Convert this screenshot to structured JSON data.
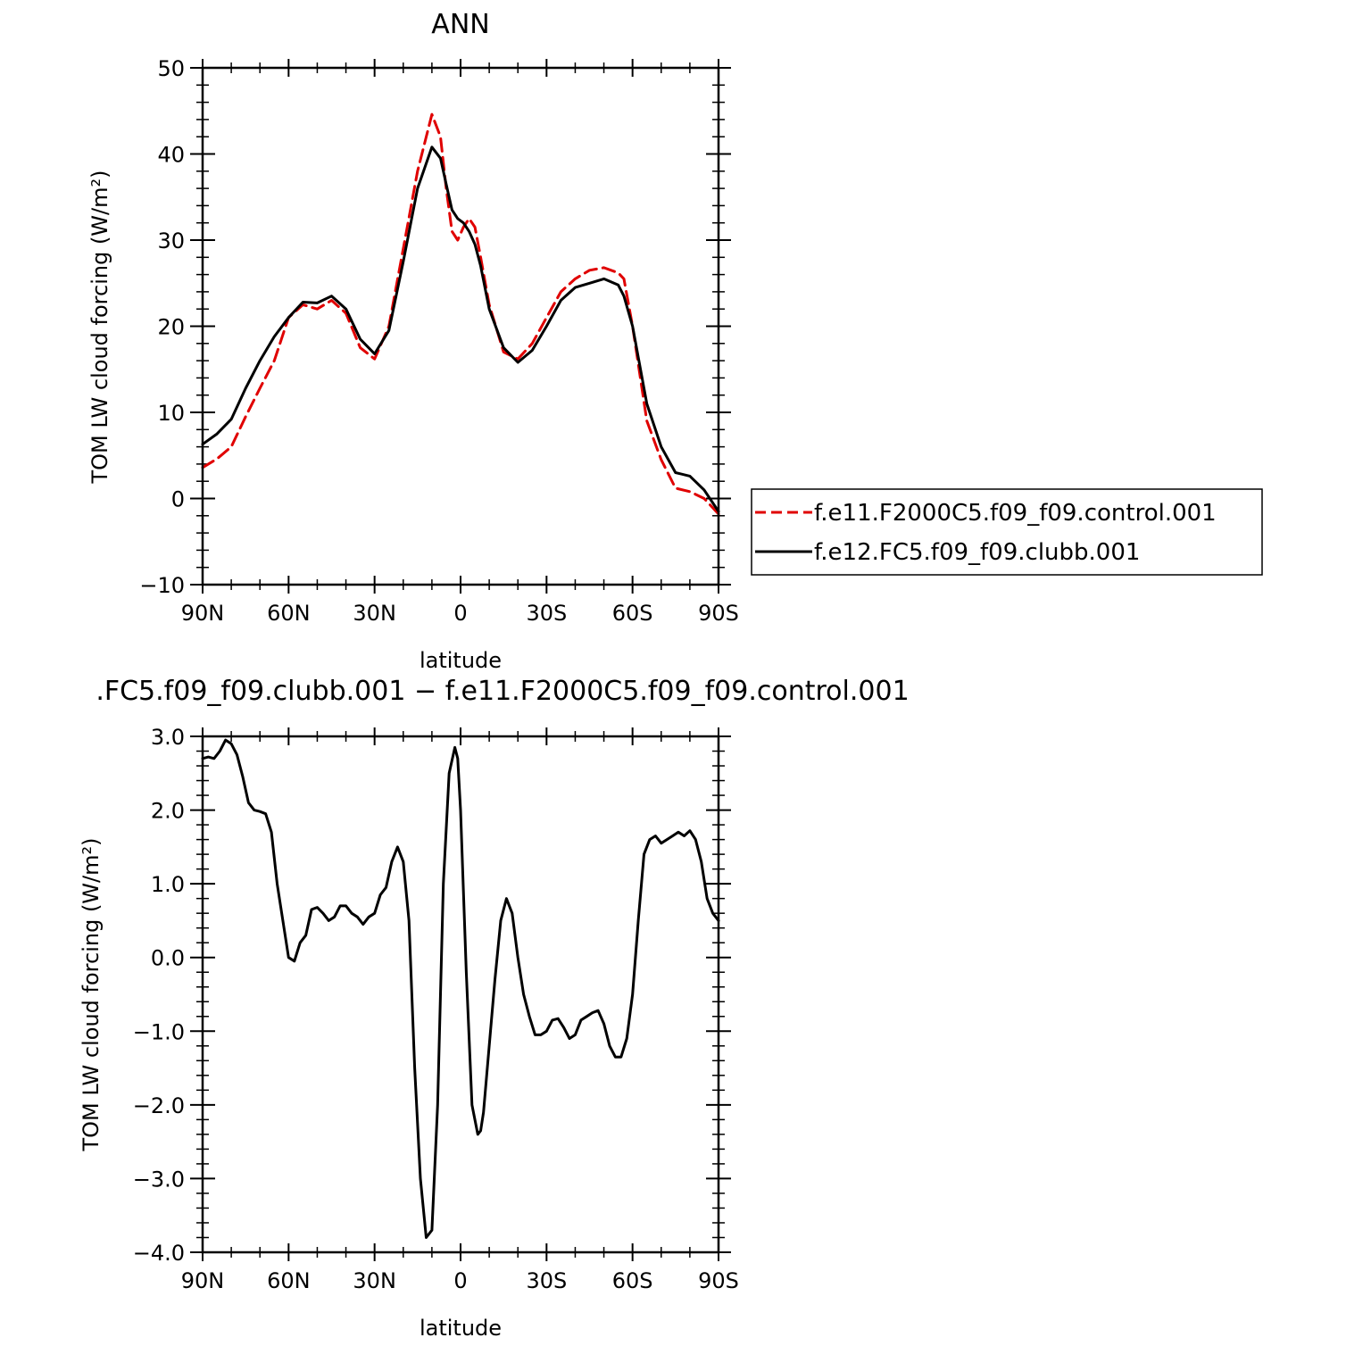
{
  "chart_data": [
    {
      "type": "line",
      "title": "ANN",
      "xlabel": "latitude",
      "ylabel": "TOM LW cloud forcing (W/m²)",
      "xlim": [
        90,
        -90
      ],
      "ylim": [
        -10,
        50
      ],
      "xticks": [
        90,
        60,
        30,
        0,
        -30,
        -60,
        -90
      ],
      "xtick_labels": [
        "90N",
        "60N",
        "30N",
        "0",
        "30S",
        "60S",
        "90S"
      ],
      "yticks": [
        -10,
        0,
        10,
        20,
        30,
        40,
        50
      ],
      "ytick_labels": [
        "−10",
        "0",
        "10",
        "20",
        "30",
        "40",
        "50"
      ],
      "legend_position": "right",
      "series": [
        {
          "name": "f.e11.F2000C5.f09_f09.control.001",
          "color": "#e00000",
          "style": "dashed",
          "x": [
            90,
            85,
            80,
            75,
            70,
            65,
            60,
            55,
            50,
            45,
            40,
            35,
            30,
            25,
            20,
            15,
            10,
            7,
            5,
            3,
            1,
            -1,
            -3,
            -5,
            -7,
            -10,
            -15,
            -20,
            -25,
            -30,
            -35,
            -40,
            -45,
            -50,
            -55,
            -57,
            -60,
            -65,
            -70,
            -75,
            -80,
            -85,
            -90
          ],
          "y": [
            3.6,
            4.6,
            6.0,
            9.5,
            12.8,
            16.0,
            21.0,
            22.5,
            22.0,
            23.0,
            21.5,
            17.5,
            16.2,
            20.0,
            29.0,
            38.0,
            44.6,
            42.0,
            36.0,
            31.0,
            30.0,
            31.5,
            32.5,
            31.5,
            28.0,
            22.5,
            17.0,
            16.2,
            18.0,
            21.0,
            24.0,
            25.5,
            26.5,
            26.8,
            26.2,
            25.5,
            20.0,
            9.0,
            4.5,
            1.2,
            0.8,
            0.0,
            -1.8
          ]
        },
        {
          "name": "f.e12.FC5.f09_f09.clubb.001",
          "color": "#000000",
          "style": "solid",
          "x": [
            90,
            85,
            80,
            75,
            70,
            65,
            60,
            55,
            50,
            45,
            40,
            35,
            30,
            25,
            20,
            15,
            10,
            7,
            5,
            3,
            1,
            -1,
            -3,
            -5,
            -7,
            -10,
            -15,
            -20,
            -25,
            -30,
            -35,
            -40,
            -45,
            -50,
            -55,
            -57,
            -60,
            -65,
            -70,
            -75,
            -80,
            -85,
            -90
          ],
          "y": [
            6.3,
            7.5,
            9.2,
            12.8,
            16.0,
            18.8,
            21.0,
            22.8,
            22.7,
            23.5,
            22.0,
            18.5,
            16.8,
            19.5,
            27.5,
            36.0,
            40.8,
            39.5,
            36.5,
            33.5,
            32.5,
            32.0,
            31.0,
            29.5,
            27.0,
            22.0,
            17.5,
            15.8,
            17.2,
            20.0,
            23.0,
            24.5,
            25.0,
            25.5,
            24.8,
            23.5,
            20.0,
            11.0,
            6.0,
            3.0,
            2.6,
            1.0,
            -1.5
          ]
        }
      ]
    },
    {
      "type": "line",
      "title": ".FC5.f09_f09.clubb.001 − f.e11.F2000C5.f09_f09.control.001",
      "xlabel": "latitude",
      "ylabel": "TOM LW cloud forcing (W/m²)",
      "xlim": [
        90,
        -90
      ],
      "ylim": [
        -4.0,
        3.0
      ],
      "xticks": [
        90,
        60,
        30,
        0,
        -30,
        -60,
        -90
      ],
      "xtick_labels": [
        "90N",
        "60N",
        "30N",
        "0",
        "30S",
        "60S",
        "90S"
      ],
      "yticks": [
        -4,
        -3,
        -2,
        -1,
        0,
        1,
        2,
        3
      ],
      "ytick_labels": [
        "−4.0",
        "−3.0",
        "−2.0",
        "−1.0",
        "0.0",
        "1.0",
        "2.0",
        "3.0"
      ],
      "series": [
        {
          "name": "",
          "color": "#000000",
          "style": "solid",
          "x": [
            90,
            88,
            86,
            84,
            82,
            80,
            78,
            76,
            74,
            72,
            70,
            68,
            66,
            64,
            62,
            60,
            58,
            56,
            54,
            52,
            50,
            48,
            46,
            44,
            42,
            40,
            38,
            36,
            34,
            32,
            30,
            28,
            26,
            24,
            22,
            20,
            18,
            16,
            14,
            12,
            10,
            8,
            7,
            6,
            4,
            2,
            1,
            0,
            -2,
            -4,
            -6,
            -7,
            -8,
            -10,
            -12,
            -14,
            -16,
            -18,
            -20,
            -22,
            -24,
            -26,
            -28,
            -30,
            -32,
            -34,
            -36,
            -38,
            -40,
            -42,
            -44,
            -46,
            -48,
            -50,
            -52,
            -54,
            -56,
            -58,
            -60,
            -62,
            -64,
            -66,
            -68,
            -70,
            -72,
            -74,
            -76,
            -78,
            -80,
            -82,
            -84,
            -86,
            -88,
            -90
          ],
          "y": [
            2.7,
            2.72,
            2.7,
            2.8,
            2.95,
            2.9,
            2.75,
            2.45,
            2.1,
            2.0,
            1.98,
            1.95,
            1.7,
            1.0,
            0.5,
            0.0,
            -0.05,
            0.2,
            0.3,
            0.65,
            0.68,
            0.6,
            0.5,
            0.55,
            0.7,
            0.7,
            0.6,
            0.55,
            0.45,
            0.55,
            0.6,
            0.85,
            0.95,
            1.3,
            1.5,
            1.3,
            0.5,
            -1.5,
            -3.0,
            -3.8,
            -3.7,
            -2.0,
            -0.5,
            1.0,
            2.5,
            2.85,
            2.7,
            2.0,
            -0.2,
            -2.0,
            -2.4,
            -2.35,
            -2.1,
            -1.2,
            -0.3,
            0.5,
            0.8,
            0.6,
            0.0,
            -0.5,
            -0.8,
            -1.05,
            -1.05,
            -1.0,
            -0.85,
            -0.83,
            -0.95,
            -1.1,
            -1.05,
            -0.85,
            -0.8,
            -0.75,
            -0.72,
            -0.9,
            -1.2,
            -1.35,
            -1.35,
            -1.1,
            -0.5,
            0.5,
            1.4,
            1.6,
            1.65,
            1.55,
            1.6,
            1.65,
            1.7,
            1.65,
            1.72,
            1.6,
            1.3,
            0.8,
            0.6,
            0.5
          ]
        }
      ]
    }
  ]
}
